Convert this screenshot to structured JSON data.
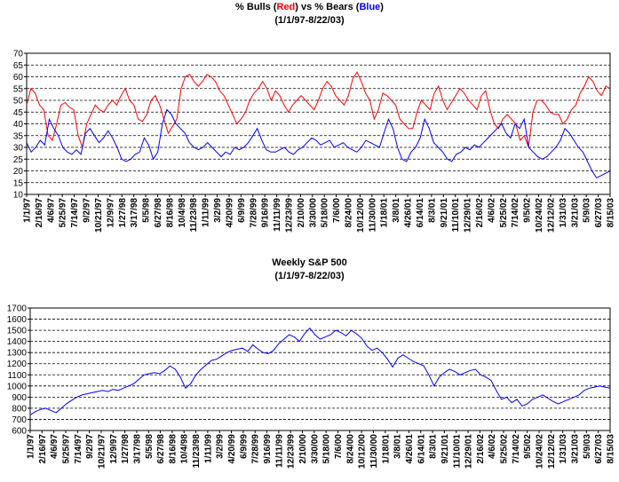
{
  "chart_data": [
    {
      "type": "line",
      "title_parts": {
        "pre": "% Bulls (",
        "red_word": "Red",
        "mid": ") vs % Bears (",
        "blue_word": "Blue",
        "post": ")"
      },
      "subtitle": "(1/1/97-8/22/03)",
      "ylim": [
        10,
        70
      ],
      "yticks": [
        "10",
        "15",
        "20",
        "25",
        "30",
        "35",
        "40",
        "45",
        "50",
        "55",
        "60",
        "65",
        "70"
      ],
      "grid": true,
      "x_labels": [
        "1/1/97",
        "2/16/97",
        "4/6/97",
        "5/25/97",
        "7/14/97",
        "9/2/97",
        "10/21/97",
        "12/9/97",
        "1/27/98",
        "3/17/98",
        "5/5/98",
        "6/27/98",
        "8/16/98",
        "10/4/98",
        "11/23/98",
        "1/11/99",
        "3/2/99",
        "4/20/99",
        "6/9/99",
        "7/28/99",
        "9/16/99",
        "11/11/99",
        "12/23/99",
        "2/10/00",
        "3/30/00",
        "5/18/00",
        "7/6/00",
        "8/24/00",
        "10/12/00",
        "11/30/00",
        "1/18/01",
        "3/8/01",
        "4/26/01",
        "6/14/01",
        "8/3/01",
        "9/21/01",
        "11/10/01",
        "12/29/01",
        "2/16/02",
        "4/6/02",
        "5/25/02",
        "7/14/02",
        "9/5/02",
        "10/24/02",
        "12/12/02",
        "1/31/03",
        "3/21/03",
        "5/9/03",
        "6/27/03",
        "8/15/03"
      ],
      "series": [
        {
          "name": "Red",
          "color": "#ff0000",
          "values": [
            48,
            55,
            53,
            48,
            46,
            35,
            33,
            40,
            48,
            49,
            47,
            46,
            35,
            30,
            40,
            44,
            48,
            46,
            45,
            48,
            50,
            48,
            52,
            55,
            50,
            48,
            42,
            41,
            44,
            50,
            52,
            48,
            42,
            36,
            39,
            42,
            55,
            60,
            61,
            58,
            56,
            58,
            61,
            60,
            58,
            54,
            52,
            48,
            44,
            40,
            42,
            45,
            50,
            53,
            55,
            58,
            55,
            50,
            54,
            52,
            48,
            45,
            48,
            50,
            52,
            50,
            48,
            46,
            50,
            55,
            58,
            56,
            52,
            50,
            48,
            52,
            59,
            62,
            58,
            53,
            50,
            42,
            46,
            53,
            52,
            50,
            48,
            42,
            40,
            38,
            38,
            45,
            50,
            48,
            46,
            53,
            56,
            50,
            46,
            49,
            52,
            55,
            53,
            50,
            48,
            46,
            52,
            54,
            46,
            40,
            38,
            42,
            44,
            42,
            40,
            33,
            35,
            30,
            45,
            50,
            50,
            48,
            45,
            44,
            44,
            40,
            42,
            46,
            48,
            53,
            56,
            60,
            58,
            54,
            52,
            56,
            55
          ]
        },
        {
          "name": "Blue",
          "color": "#0000ff",
          "values": [
            32,
            28,
            30,
            33,
            31,
            42,
            38,
            35,
            30,
            28,
            27,
            29,
            27,
            36,
            38,
            35,
            32,
            34,
            37,
            34,
            30,
            25,
            24,
            25,
            27,
            28,
            34,
            31,
            25,
            28,
            40,
            46,
            44,
            40,
            38,
            36,
            32,
            30,
            29,
            30,
            32,
            30,
            28,
            26,
            28,
            27,
            30,
            29,
            30,
            32,
            35,
            38,
            33,
            29,
            28,
            28,
            29,
            30,
            28,
            27,
            29,
            30,
            32,
            34,
            33,
            31,
            32,
            33,
            30,
            31,
            32,
            30,
            29,
            28,
            30,
            33,
            32,
            31,
            30,
            36,
            42,
            38,
            30,
            25,
            24,
            28,
            30,
            34,
            42,
            38,
            32,
            30,
            28,
            25,
            24,
            27,
            28,
            30,
            29,
            31,
            30,
            32,
            34,
            36,
            38,
            40,
            36,
            34,
            40,
            38,
            42,
            30,
            28,
            26,
            25,
            26,
            28,
            30,
            33,
            38,
            36,
            33,
            30,
            28,
            24,
            20,
            17,
            18,
            19,
            20
          ]
        }
      ]
    },
    {
      "type": "line",
      "title": "Weekly S&P 500",
      "subtitle": "(1/1/97-8/22/03)",
      "ylim": [
        600,
        1700
      ],
      "yticks": [
        "600",
        "700",
        "800",
        "900",
        "1000",
        "1100",
        "1200",
        "1300",
        "1400",
        "1500",
        "1600",
        "1700"
      ],
      "grid": true,
      "x_labels": [
        "1/1/97",
        "2/16/97",
        "4/6/97",
        "5/25/97",
        "7/14/97",
        "9/2/97",
        "10/21/97",
        "12/9/97",
        "1/27/98",
        "3/17/98",
        "5/5/98",
        "6/27/98",
        "8/16/98",
        "10/4/98",
        "11/23/98",
        "1/11/99",
        "3/2/99",
        "4/20/99",
        "6/9/99",
        "7/28/99",
        "9/16/99",
        "11/11/99",
        "12/23/99",
        "2/10/00",
        "3/30/00",
        "5/18/00",
        "7/6/00",
        "8/24/00",
        "10/12/00",
        "11/30/00",
        "1/18/01",
        "3/8/01",
        "4/26/01",
        "6/14/01",
        "8/3/01",
        "9/21/01",
        "11/10/01",
        "12/29/01",
        "2/16/02",
        "4/6/02",
        "5/25/02",
        "7/14/02",
        "9/5/02",
        "10/24/02",
        "12/12/02",
        "1/31/03",
        "3/21/03",
        "5/9/03",
        "6/27/03",
        "8/15/03"
      ],
      "series": [
        {
          "color": "#0000ff",
          "values": [
            740,
            770,
            790,
            800,
            780,
            760,
            800,
            840,
            870,
            900,
            920,
            930,
            940,
            950,
            960,
            950,
            970,
            960,
            980,
            1000,
            1020,
            1060,
            1100,
            1110,
            1120,
            1110,
            1140,
            1180,
            1150,
            1080,
            980,
            1020,
            1100,
            1150,
            1190,
            1230,
            1240,
            1270,
            1300,
            1320,
            1330,
            1340,
            1310,
            1370,
            1330,
            1300,
            1290,
            1320,
            1380,
            1420,
            1460,
            1440,
            1400,
            1470,
            1520,
            1460,
            1420,
            1440,
            1460,
            1500,
            1480,
            1450,
            1500,
            1470,
            1430,
            1360,
            1320,
            1340,
            1300,
            1240,
            1170,
            1250,
            1280,
            1250,
            1220,
            1200,
            1180,
            1100,
            1000,
            1080,
            1120,
            1150,
            1130,
            1100,
            1120,
            1140,
            1150,
            1100,
            1080,
            1050,
            960,
            880,
            900,
            850,
            880,
            820,
            840,
            880,
            900,
            920,
            890,
            860,
            840,
            860,
            880,
            900,
            920,
            960,
            980,
            990,
            1000,
            990,
            980
          ]
        }
      ]
    }
  ]
}
